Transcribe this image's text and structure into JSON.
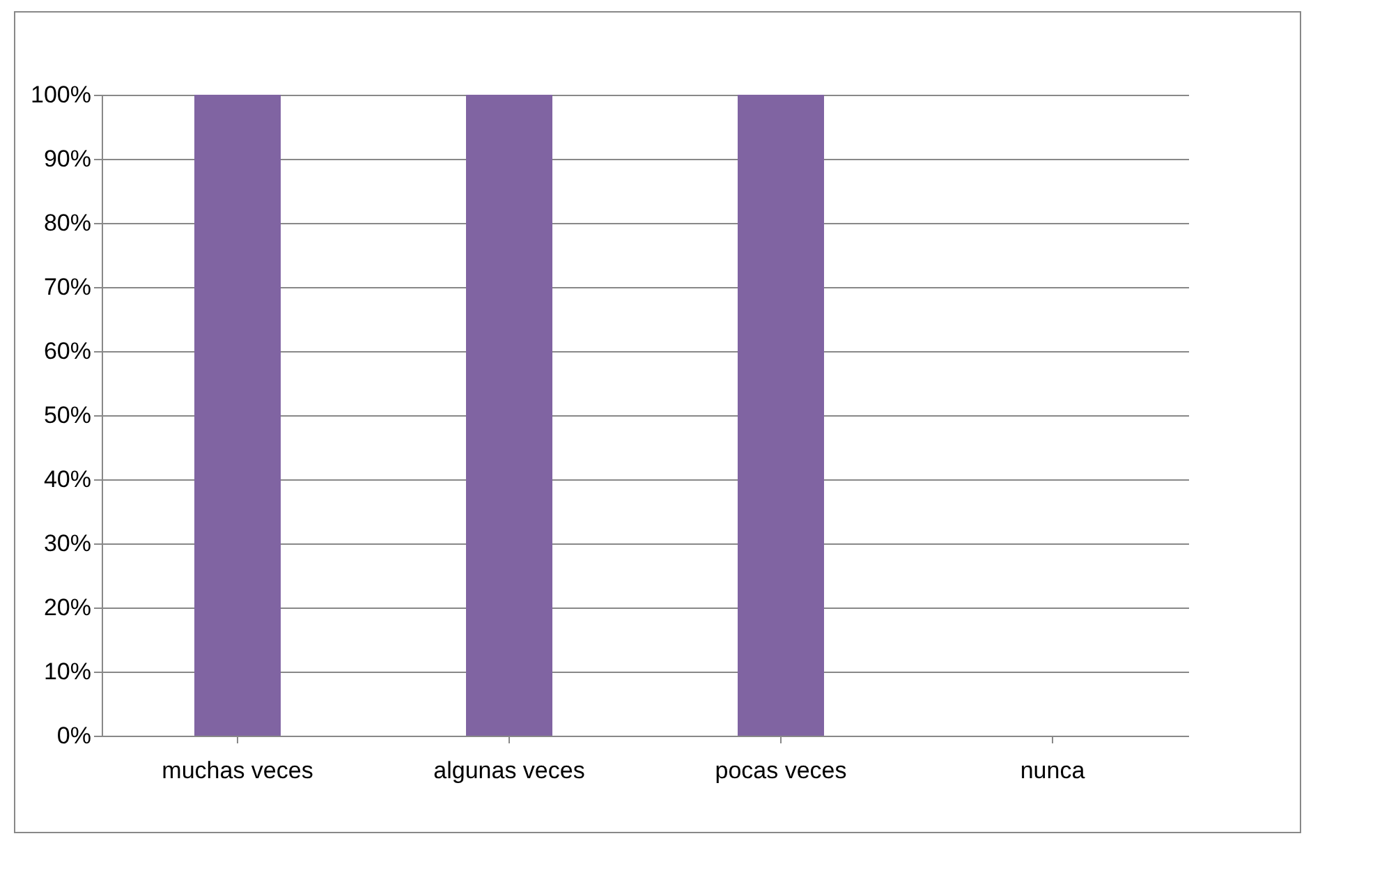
{
  "chart_data": {
    "type": "bar",
    "categories": [
      "muchas veces",
      "algunas veces",
      "pocas veces",
      "nunca"
    ],
    "values": [
      100,
      100,
      100,
      0
    ],
    "color": "#8064a2",
    "ylim": [
      0,
      100
    ],
    "yticks": [
      {
        "value": 0,
        "label": "0%"
      },
      {
        "value": 10,
        "label": "10%"
      },
      {
        "value": 20,
        "label": "20%"
      },
      {
        "value": 30,
        "label": "30%"
      },
      {
        "value": 40,
        "label": "40%"
      },
      {
        "value": 50,
        "label": "50%"
      },
      {
        "value": 60,
        "label": "60%"
      },
      {
        "value": 70,
        "label": "70%"
      },
      {
        "value": 80,
        "label": "80%"
      },
      {
        "value": 90,
        "label": "90%"
      },
      {
        "value": 100,
        "label": "100%"
      }
    ],
    "grid": "y"
  }
}
